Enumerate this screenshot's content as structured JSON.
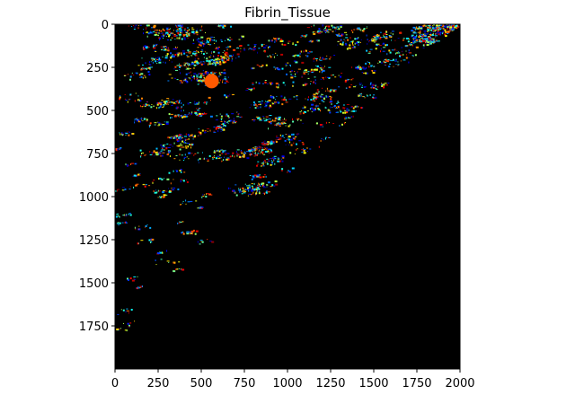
{
  "chart_data": {
    "type": "heatmap",
    "title": "Fibrin_Tissue",
    "xlabel": "",
    "ylabel": "",
    "xlim": [
      0,
      2000
    ],
    "ylim": [
      2000,
      0
    ],
    "y_axis_inverted": true,
    "x_ticks": [
      0,
      250,
      500,
      750,
      1000,
      1250,
      1500,
      1750,
      2000
    ],
    "y_ticks": [
      0,
      250,
      500,
      750,
      1000,
      1250,
      1500,
      1750
    ],
    "x_tick_labels": [
      "0",
      "250",
      "500",
      "750",
      "1000",
      "1250",
      "1500",
      "1750",
      "2000"
    ],
    "y_tick_labels": [
      "0",
      "250",
      "500",
      "750",
      "1000",
      "1250",
      "1500",
      "1750"
    ],
    "background_color": "#000000",
    "colormap": "jet",
    "colorbar": false,
    "grid": false,
    "tissue_boundary": [
      [
        2000,
        0
      ],
      [
        1700,
        220
      ],
      [
        1500,
        430
      ],
      [
        1250,
        650
      ],
      [
        1000,
        870
      ],
      [
        750,
        1090
      ],
      [
        500,
        1320
      ],
      [
        250,
        1560
      ],
      [
        0,
        1850
      ]
    ],
    "dense_regions": [
      {
        "x": [
          0,
          650
        ],
        "y": [
          0,
          500
        ]
      },
      {
        "x": [
          0,
          1000
        ],
        "y": [
          450,
          800
        ]
      },
      {
        "x": [
          600,
          950
        ],
        "y": [
          900,
          1100
        ]
      }
    ],
    "hotspot": {
      "x": 560,
      "y": 330,
      "color": "#ff5a00"
    }
  },
  "colors": {
    "axes_background": "#000000",
    "axis_color": "#000000",
    "text_color": "#000000"
  }
}
